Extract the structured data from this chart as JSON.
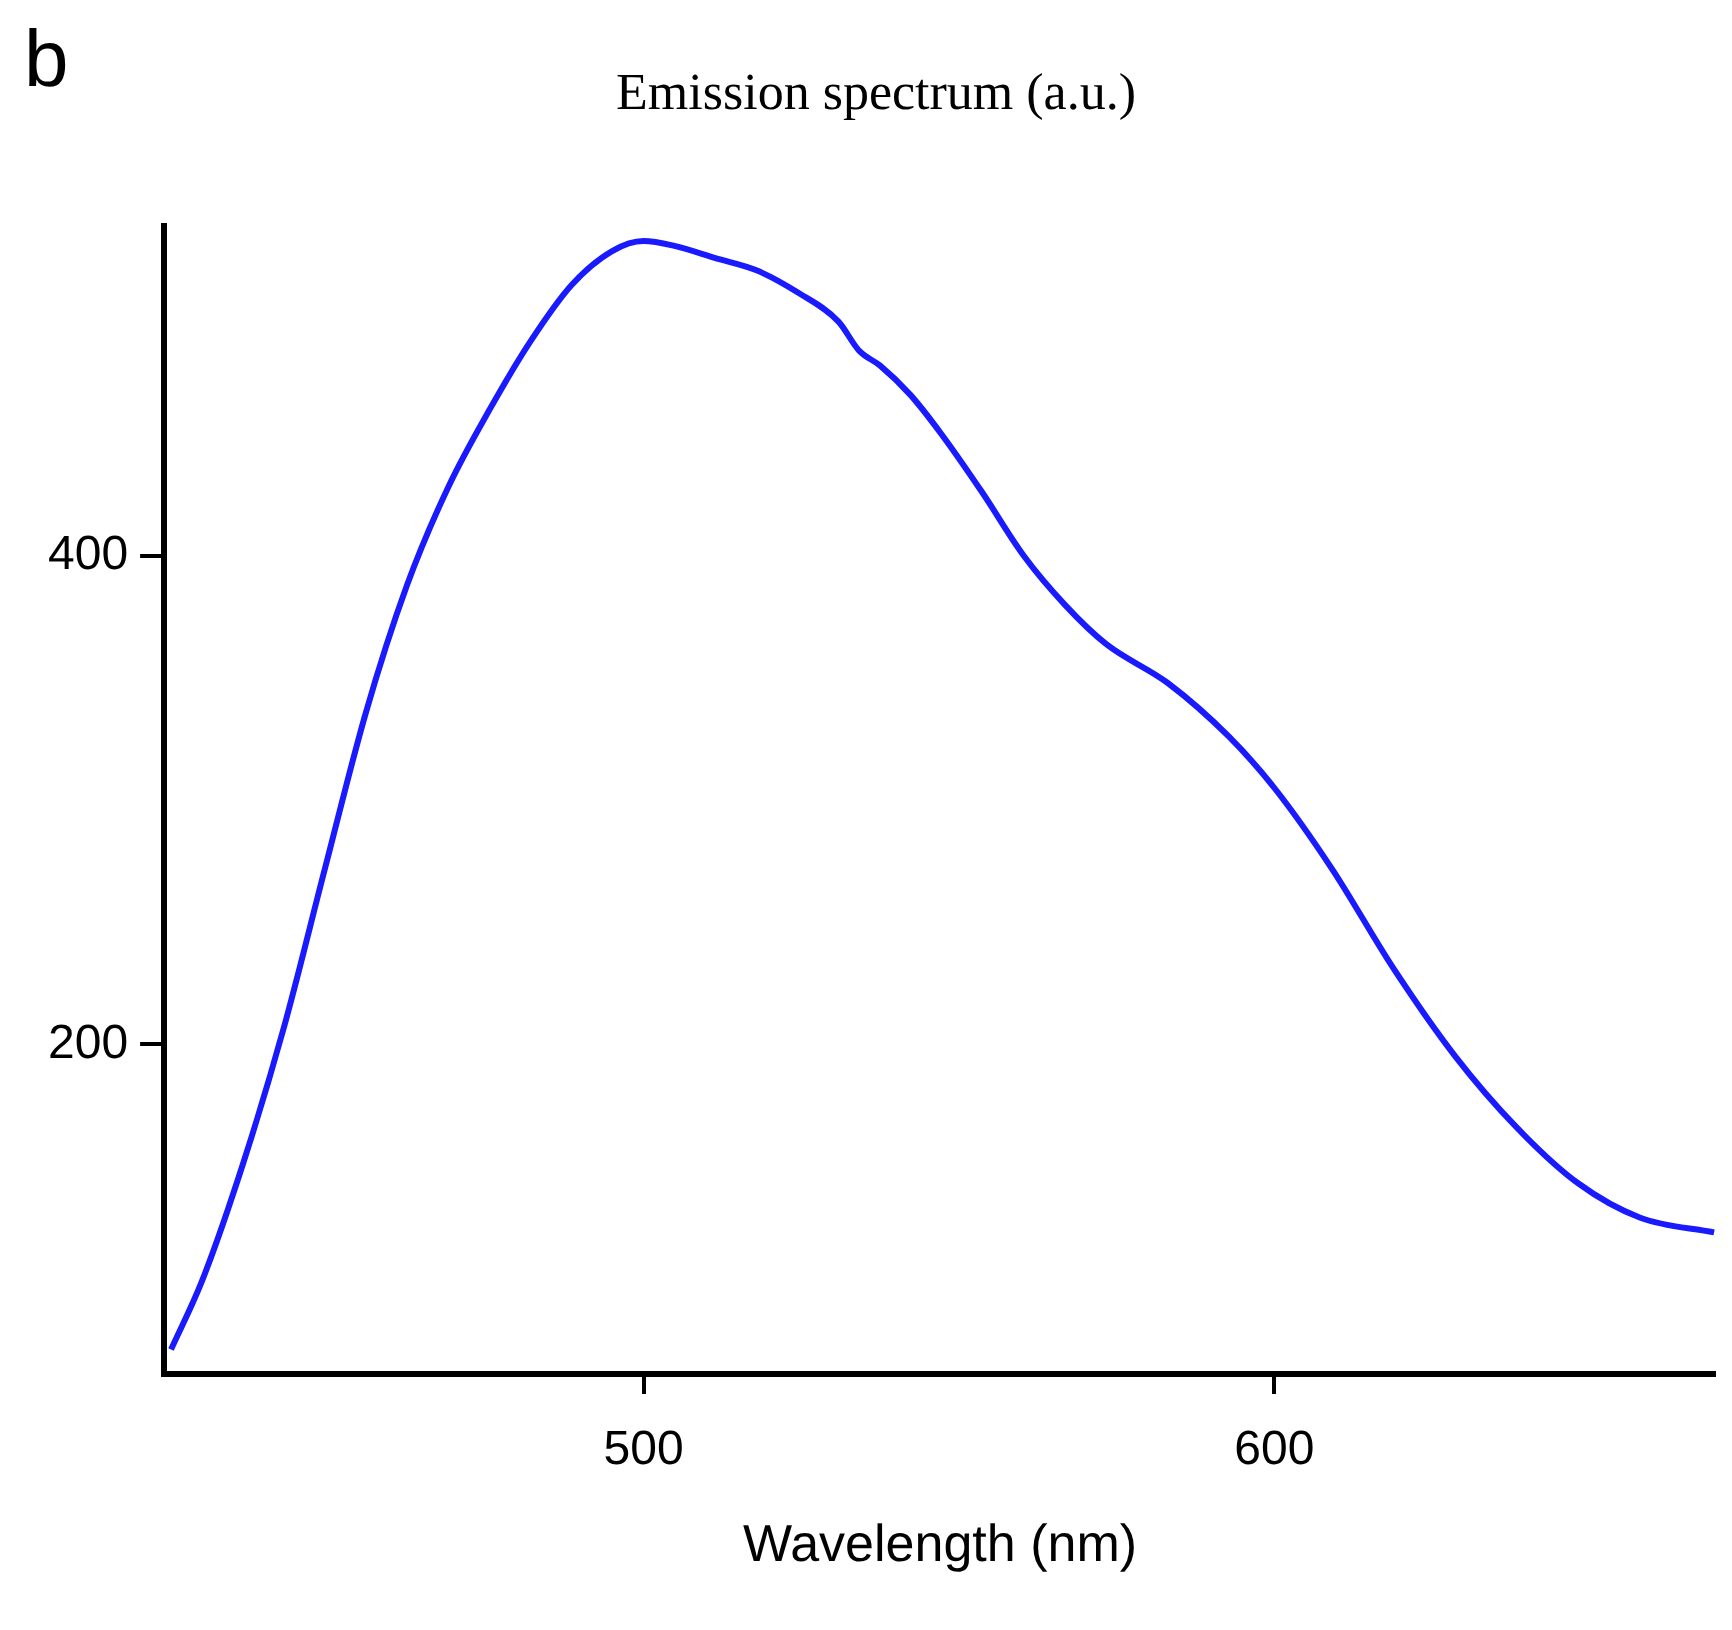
{
  "chart_data": {
    "type": "line",
    "title": "Emission spectrum (a.u.)",
    "xlabel": "Wavelength (nm)",
    "annotations": [
      "b"
    ],
    "x": [
      425.1,
      430,
      436.5,
      443,
      449.5,
      456,
      462.5,
      469,
      475.6,
      482.1,
      488.6,
      495.1,
      500,
      504.9,
      511.4,
      517.9,
      524.4,
      530.9,
      534.2,
      537.5,
      542.3,
      547.2,
      553.7,
      560.3,
      566.8,
      573.3,
      583.1,
      592.8,
      600,
      609.1,
      618.9,
      628.7,
      638.4,
      648.2,
      658,
      669.7
    ],
    "series": [
      {
        "color": "#1a1aff",
        "values": [
          75,
          103,
          151,
          207,
          272,
          336,
          388,
          428,
          460,
          488,
          511,
          525,
          529,
          527,
          522,
          517,
          508,
          496,
          484,
          478,
          466,
          450,
          426,
          400,
          380,
          364,
          348,
          326,
          305,
          272,
          231,
          195,
          166,
          143,
          129,
          123
        ]
      }
    ],
    "xlim": [
      424,
      670
    ],
    "xticks": [
      500,
      600
    ],
    "ylim": [
      65,
      535
    ],
    "yticks": [
      200,
      400
    ],
    "grid": false,
    "legend": false,
    "marker": "none",
    "line_style": "solid"
  }
}
